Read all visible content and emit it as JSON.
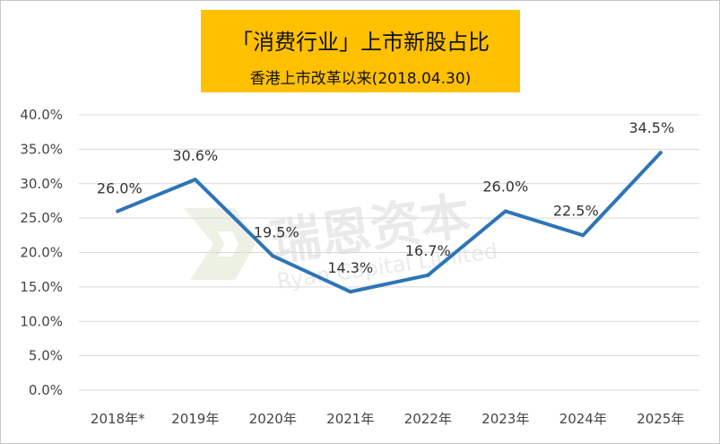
{
  "header": {
    "title": "「消费行业」上市新股占比",
    "subtitle": "香港上市改革以来(2018.04.30)",
    "title_bg_color": "#ffc000"
  },
  "watermark": {
    "text_cn": "瑞恩资本",
    "text_en": "Ryan Capital Limited"
  },
  "chart_data": {
    "type": "line",
    "categories": [
      "2018年*",
      "2019年",
      "2020年",
      "2021年",
      "2022年",
      "2023年",
      "2024年",
      "2025年"
    ],
    "series": [
      {
        "values": [
          26.0,
          30.6,
          19.5,
          14.3,
          16.7,
          26.0,
          22.5,
          34.5
        ],
        "value_labels": [
          "26.0%",
          "30.6%",
          "19.5%",
          "14.3%",
          "16.7%",
          "26.0%",
          "22.5%",
          "34.5%"
        ],
        "color": "#2e75b6"
      }
    ],
    "y_ticks": [
      "0.0%",
      "5.0%",
      "10.0%",
      "15.0%",
      "20.0%",
      "25.0%",
      "30.0%",
      "35.0%",
      "40.0%"
    ],
    "ylim": [
      0,
      40
    ],
    "grid": true,
    "xlabel": "",
    "ylabel": ""
  }
}
